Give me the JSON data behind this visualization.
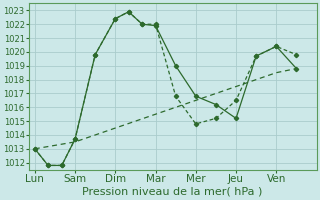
{
  "title": "",
  "xlabel": "Pression niveau de la mer( hPa )",
  "ylabel": "",
  "background_color": "#cce8e8",
  "grid_color": "#aacccc",
  "line_color": "#2d6a2d",
  "ylim": [
    1011.5,
    1023.5
  ],
  "yticks": [
    1012,
    1013,
    1014,
    1015,
    1016,
    1017,
    1018,
    1019,
    1020,
    1021,
    1022,
    1023
  ],
  "x_labels": [
    "Lun",
    "Sam",
    "Dim",
    "Mar",
    "Mer",
    "Jeu",
    "Ven"
  ],
  "x_positions": [
    0,
    1,
    2,
    3,
    4,
    5,
    6
  ],
  "xlim": [
    -0.15,
    7.0
  ],
  "line1_x": [
    0,
    0.33,
    0.67,
    1.0,
    1.5,
    2.0,
    2.33,
    2.67,
    3.0,
    3.5,
    4.0,
    4.5,
    5.0,
    5.5,
    6.0,
    6.5
  ],
  "line1_y": [
    1013.0,
    1011.8,
    1011.8,
    1013.7,
    1019.8,
    1022.4,
    1022.9,
    1022.0,
    1021.9,
    1019.0,
    1016.8,
    1016.2,
    1015.2,
    1019.7,
    1020.4,
    1018.8
  ],
  "line2_x": [
    0,
    0.33,
    0.67,
    1.0,
    1.5,
    2.0,
    2.33,
    2.67,
    3.0,
    3.5,
    4.0,
    4.5,
    5.0,
    5.5,
    6.0,
    6.5
  ],
  "line2_y": [
    1013.0,
    1011.8,
    1011.8,
    1013.7,
    1019.8,
    1022.4,
    1022.9,
    1022.0,
    1022.0,
    1016.8,
    1014.8,
    1015.2,
    1016.5,
    1019.7,
    1020.4,
    1019.8
  ],
  "line3_x": [
    0,
    1.0,
    2.0,
    3.0,
    4.0,
    5.0,
    6.0,
    6.5
  ],
  "line3_y": [
    1013.0,
    1013.5,
    1014.5,
    1015.5,
    1016.5,
    1017.5,
    1018.5,
    1018.8
  ],
  "fontsize_xlabel": 8,
  "fontsize_ytick": 6,
  "fontsize_xtick": 7.5
}
